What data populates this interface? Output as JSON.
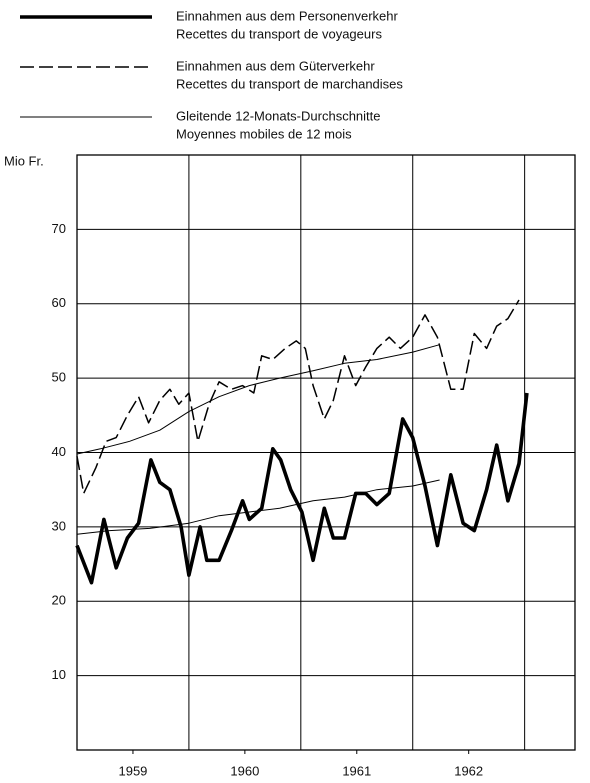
{
  "chart_data": {
    "type": "line",
    "y_label": "Mio Fr.",
    "ylim": [
      0,
      80
    ],
    "yticks": [
      10,
      20,
      30,
      40,
      50,
      60,
      70
    ],
    "xlim": [
      1959,
      1963.45
    ],
    "xticks": [
      {
        "value": 1959.5,
        "label": "1959"
      },
      {
        "value": 1960.5,
        "label": "1960"
      },
      {
        "value": 1961.5,
        "label": "1961"
      },
      {
        "value": 1962.5,
        "label": "1962"
      }
    ],
    "xgrid": [
      1960,
      1961,
      1962,
      1963
    ],
    "grid": true,
    "series": [
      {
        "name": [
          "Einnahmen aus dem Personenverkehr",
          "Recettes du transport de voyageurs"
        ],
        "color": "#000000",
        "style": "thick",
        "x": [
          1959.0,
          1959.13,
          1959.24,
          1959.35,
          1959.45,
          1959.55,
          1959.66,
          1959.74,
          1959.83,
          1959.93,
          1960.0,
          1960.1,
          1960.16,
          1960.27,
          1960.38,
          1960.48,
          1960.54,
          1960.65,
          1960.75,
          1960.82,
          1960.91,
          1961.01,
          1961.11,
          1961.21,
          1961.29,
          1961.39,
          1961.49,
          1961.58,
          1961.68,
          1961.79,
          1961.91,
          1962.0,
          1962.11,
          1962.22,
          1962.34,
          1962.45,
          1962.55,
          1962.66,
          1962.75,
          1962.85,
          1962.95,
          1963.02
        ],
        "values": [
          27.5,
          22.5,
          31,
          24.5,
          28.5,
          30.5,
          39,
          36,
          35,
          30,
          23.5,
          30,
          25.5,
          25.5,
          29.5,
          33.5,
          31,
          32.5,
          40.5,
          39,
          35,
          32,
          25.5,
          32.5,
          28.5,
          28.5,
          34.5,
          34.5,
          33,
          34.5,
          44.5,
          42,
          35.5,
          27.5,
          37,
          30.5,
          29.5,
          35,
          41,
          33.5,
          38.5,
          48
        ]
      },
      {
        "name": [
          "Einnahmen aus dem Güterverkehr",
          "Recettes du transport de marchandises"
        ],
        "color": "#000000",
        "style": "dashed",
        "x": [
          1959.0,
          1959.06,
          1959.17,
          1959.26,
          1959.35,
          1959.45,
          1959.55,
          1959.64,
          1959.74,
          1959.83,
          1959.91,
          1960.0,
          1960.08,
          1960.18,
          1960.27,
          1960.38,
          1960.48,
          1960.58,
          1960.65,
          1960.75,
          1960.86,
          1960.96,
          1961.04,
          1961.11,
          1961.21,
          1961.29,
          1961.39,
          1961.49,
          1961.58,
          1961.68,
          1961.79,
          1961.89,
          1962.0,
          1962.11,
          1962.22,
          1962.34,
          1962.45,
          1962.55,
          1962.66,
          1962.75,
          1962.85,
          1962.95
        ],
        "values": [
          39.5,
          34.5,
          38,
          41.5,
          42,
          45,
          47.5,
          44,
          47,
          48.5,
          46.5,
          48,
          41.5,
          46.5,
          49.5,
          48.5,
          49,
          48,
          53,
          52.5,
          54,
          55,
          54,
          49,
          44.5,
          47,
          53,
          49,
          51.5,
          54,
          55.5,
          54,
          55.5,
          58.5,
          55.5,
          48.5,
          48.5,
          56,
          54,
          57,
          58,
          60.5
        ]
      },
      {
        "name": [
          "Gleitende 12-Monats-Durchschnitte",
          "Moyennes mobiles de 12 mois"
        ],
        "color": "#000000",
        "style": "thin",
        "lines": [
          {
            "x": [
              1959.0,
              1959.21,
              1959.47,
              1959.74,
              1960.0,
              1960.27,
              1960.54,
              1960.81,
              1961.11,
              1961.39,
              1961.68,
              1962.0,
              1962.24
            ],
            "values": [
              39.8,
              40.5,
              41.5,
              43,
              45.5,
              47.5,
              49,
              50,
              51,
              52,
              52.5,
              53.5,
              54.5
            ]
          },
          {
            "x": [
              1959.0,
              1959.29,
              1959.65,
              1960.0,
              1960.27,
              1960.54,
              1960.81,
              1961.11,
              1961.39,
              1961.68,
              1962.0,
              1962.24
            ],
            "values": [
              29,
              29.5,
              29.8,
              30.5,
              31.5,
              32,
              32.5,
              33.5,
              34,
              35,
              35.5,
              36.3
            ]
          }
        ]
      }
    ]
  }
}
